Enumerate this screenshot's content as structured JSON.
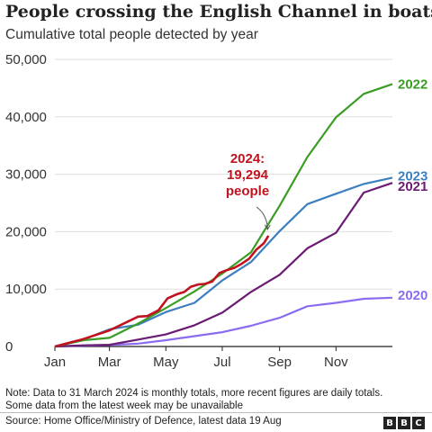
{
  "header": {
    "title": "People crossing the English Channel in boats",
    "subtitle": "Cumulative total people detected by year"
  },
  "footer": {
    "note_line1": "Note: Data to 31 March 2024 is monthly totals, more recent figures are daily totals.",
    "note_line2": "Some data from the latest week may be unavailable",
    "source": "Source: Home Office/Ministry of Defence, latest data 19 Aug",
    "logo_letters": [
      "B",
      "B",
      "C"
    ]
  },
  "chart_data": {
    "type": "line",
    "title": "People crossing the English Channel in boats",
    "subtitle": "Cumulative total people detected by year",
    "xlabel": "",
    "ylabel": "",
    "x_unit": "day of year",
    "xlim": [
      0,
      365
    ],
    "ylim": [
      0,
      50000
    ],
    "grid": true,
    "x_ticks": [
      {
        "value": 0,
        "label": "Jan"
      },
      {
        "value": 59,
        "label": "Mar"
      },
      {
        "value": 120,
        "label": "May"
      },
      {
        "value": 181,
        "label": "Jul"
      },
      {
        "value": 243,
        "label": "Sep"
      },
      {
        "value": 304,
        "label": "Nov"
      }
    ],
    "y_ticks": [
      {
        "value": 0,
        "label": "0"
      },
      {
        "value": 10000,
        "label": "10,000"
      },
      {
        "value": 20000,
        "label": "20,000"
      },
      {
        "value": 30000,
        "label": "30,000"
      },
      {
        "value": 40000,
        "label": "40,000"
      },
      {
        "value": 50000,
        "label": "50,000"
      }
    ],
    "series": [
      {
        "name": "2020",
        "color": "#8b6cf0",
        "points": [
          [
            0,
            0
          ],
          [
            31,
            150
          ],
          [
            59,
            250
          ],
          [
            90,
            500
          ],
          [
            120,
            1100
          ],
          [
            151,
            1800
          ],
          [
            181,
            2500
          ],
          [
            212,
            3600
          ],
          [
            243,
            5000
          ],
          [
            273,
            7000
          ],
          [
            304,
            7600
          ],
          [
            334,
            8300
          ],
          [
            365,
            8500
          ]
        ]
      },
      {
        "name": "2021",
        "color": "#6b1b72",
        "points": [
          [
            0,
            0
          ],
          [
            31,
            200
          ],
          [
            59,
            300
          ],
          [
            90,
            1200
          ],
          [
            120,
            2100
          ],
          [
            151,
            3700
          ],
          [
            181,
            5900
          ],
          [
            212,
            9500
          ],
          [
            243,
            12500
          ],
          [
            273,
            17100
          ],
          [
            304,
            19800
          ],
          [
            334,
            26800
          ],
          [
            365,
            28500
          ]
        ]
      },
      {
        "name": "2023",
        "color": "#3d7fbf",
        "points": [
          [
            0,
            0
          ],
          [
            31,
            1200
          ],
          [
            59,
            3000
          ],
          [
            90,
            3800
          ],
          [
            120,
            6000
          ],
          [
            151,
            7600
          ],
          [
            181,
            11500
          ],
          [
            212,
            14700
          ],
          [
            243,
            20100
          ],
          [
            273,
            24800
          ],
          [
            304,
            26600
          ],
          [
            334,
            28300
          ],
          [
            365,
            29400
          ]
        ]
      },
      {
        "name": "2022",
        "color": "#3a9d23",
        "points": [
          [
            0,
            0
          ],
          [
            31,
            1100
          ],
          [
            59,
            1500
          ],
          [
            90,
            4000
          ],
          [
            120,
            6700
          ],
          [
            151,
            9600
          ],
          [
            181,
            12700
          ],
          [
            212,
            16400
          ],
          [
            243,
            24500
          ],
          [
            273,
            33000
          ],
          [
            304,
            39900
          ],
          [
            334,
            44000
          ],
          [
            365,
            45700
          ]
        ]
      },
      {
        "name": "2024",
        "color": "#c1121f",
        "points": [
          [
            0,
            0
          ],
          [
            31,
            1300
          ],
          [
            59,
            2800
          ],
          [
            90,
            5200
          ],
          [
            100,
            5300
          ],
          [
            112,
            6300
          ],
          [
            122,
            8400
          ],
          [
            132,
            9100
          ],
          [
            140,
            9500
          ],
          [
            147,
            10400
          ],
          [
            155,
            10800
          ],
          [
            162,
            10900
          ],
          [
            170,
            11300
          ],
          [
            178,
            12800
          ],
          [
            186,
            13300
          ],
          [
            194,
            13700
          ],
          [
            202,
            14400
          ],
          [
            210,
            15300
          ],
          [
            218,
            16900
          ],
          [
            226,
            18000
          ],
          [
            231,
            19294
          ]
        ]
      }
    ],
    "annotations": [
      {
        "series": "2024",
        "lines": [
          "2024:",
          "19,294",
          "people"
        ],
        "color": "#c1121f"
      }
    ]
  }
}
